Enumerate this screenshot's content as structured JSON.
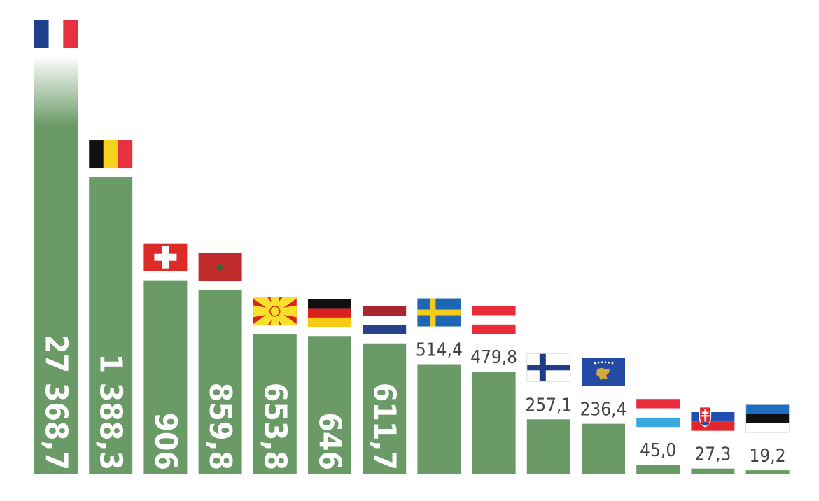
{
  "chart_data": {
    "type": "bar",
    "categories": [
      "France",
      "Belgium",
      "Switzerland",
      "Morocco",
      "North Macedonia",
      "Germany",
      "Netherlands",
      "Sweden",
      "Austria",
      "Finland",
      "Kosovo",
      "Luxembourg",
      "Slovakia",
      "Estonia"
    ],
    "values": [
      27368.7,
      1388.3,
      906,
      859.8,
      653.8,
      646,
      611.7,
      514.4,
      479.8,
      257.1,
      236.4,
      45.0,
      27.3,
      19.2
    ],
    "value_labels": [
      "27 368,7",
      "1 388,3",
      "906",
      "859,8",
      "653,8",
      "646",
      "611,7",
      "514,4",
      "479,8",
      "257,1",
      "236,4",
      "45,0",
      "27,3",
      "19,2"
    ],
    "flags": [
      "france-flag",
      "belgium-flag",
      "switzerland-flag",
      "morocco-flag",
      "north-macedonia-flag",
      "germany-flag",
      "netherlands-flag",
      "sweden-flag",
      "austria-flag",
      "finland-flag",
      "kosovo-flag",
      "luxembourg-flag",
      "slovakia-flag",
      "estonia-flag"
    ],
    "first_bar_truncated": true,
    "title": "",
    "xlabel": "",
    "ylabel": "",
    "grid": false,
    "legend": "none",
    "bar_color": "#6a9a66",
    "label_color": "#444444"
  }
}
